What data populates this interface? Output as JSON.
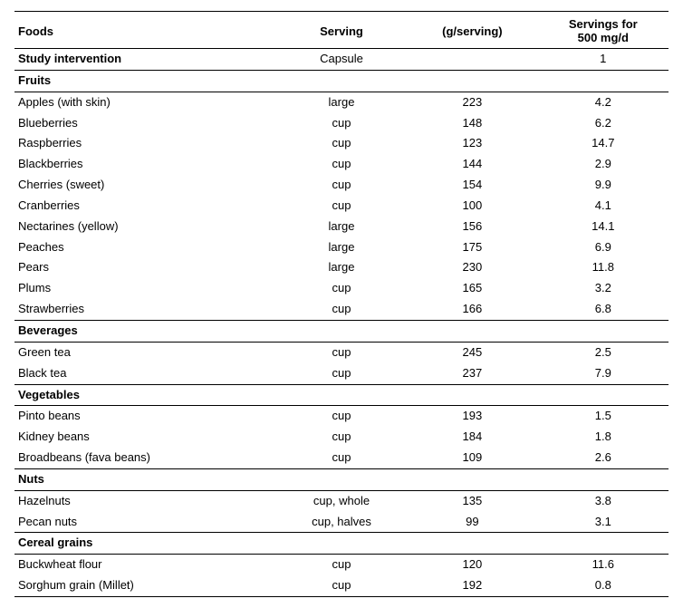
{
  "table": {
    "headers": {
      "foods": "Foods",
      "serving": "Serving",
      "g_per_serving": "(g/serving)",
      "servings_for": "Servings for\n500 mg/d"
    },
    "intervention_row": {
      "label": "Study intervention",
      "serving": "Capsule",
      "g": "",
      "servings": "1"
    },
    "sections": [
      {
        "title": "Fruits",
        "rows": [
          {
            "food": "Apples (with skin)",
            "serving": "large",
            "g": "223",
            "servings": "4.2"
          },
          {
            "food": "Blueberries",
            "serving": "cup",
            "g": "148",
            "servings": "6.2"
          },
          {
            "food": "Raspberries",
            "serving": "cup",
            "g": "123",
            "servings": "14.7"
          },
          {
            "food": "Blackberries",
            "serving": "cup",
            "g": "144",
            "servings": "2.9"
          },
          {
            "food": "Cherries (sweet)",
            "serving": "cup",
            "g": "154",
            "servings": "9.9"
          },
          {
            "food": "Cranberries",
            "serving": "cup",
            "g": "100",
            "servings": "4.1"
          },
          {
            "food": "Nectarines (yellow)",
            "serving": "large",
            "g": "156",
            "servings": "14.1"
          },
          {
            "food": "Peaches",
            "serving": "large",
            "g": "175",
            "servings": "6.9"
          },
          {
            "food": "Pears",
            "serving": "large",
            "g": "230",
            "servings": "11.8"
          },
          {
            "food": "Plums",
            "serving": "cup",
            "g": "165",
            "servings": "3.2"
          },
          {
            "food": "Strawberries",
            "serving": "cup",
            "g": "166",
            "servings": "6.8"
          }
        ]
      },
      {
        "title": "Beverages",
        "rows": [
          {
            "food": "Green tea",
            "serving": "cup",
            "g": "245",
            "servings": "2.5"
          },
          {
            "food": "Black tea",
            "serving": "cup",
            "g": "237",
            "servings": "7.9"
          }
        ]
      },
      {
        "title": "Vegetables",
        "rows": [
          {
            "food": "Pinto beans",
            "serving": "cup",
            "g": "193",
            "servings": "1.5"
          },
          {
            "food": "Kidney beans",
            "serving": "cup",
            "g": "184",
            "servings": "1.8"
          },
          {
            "food": "Broadbeans (fava beans)",
            "serving": "cup",
            "g": "109",
            "servings": "2.6"
          }
        ]
      },
      {
        "title": "Nuts",
        "rows": [
          {
            "food": "Hazelnuts",
            "serving": "cup, whole",
            "g": "135",
            "servings": "3.8"
          },
          {
            "food": "Pecan nuts",
            "serving": "cup, halves",
            "g": "99",
            "servings": "3.1"
          }
        ]
      },
      {
        "title": "Cereal grains",
        "rows": [
          {
            "food": "Buckwheat flour",
            "serving": "cup",
            "g": "120",
            "servings": "11.6"
          },
          {
            "food": "Sorghum grain (Millet)",
            "serving": "cup",
            "g": "192",
            "servings": "0.8"
          }
        ]
      }
    ]
  }
}
